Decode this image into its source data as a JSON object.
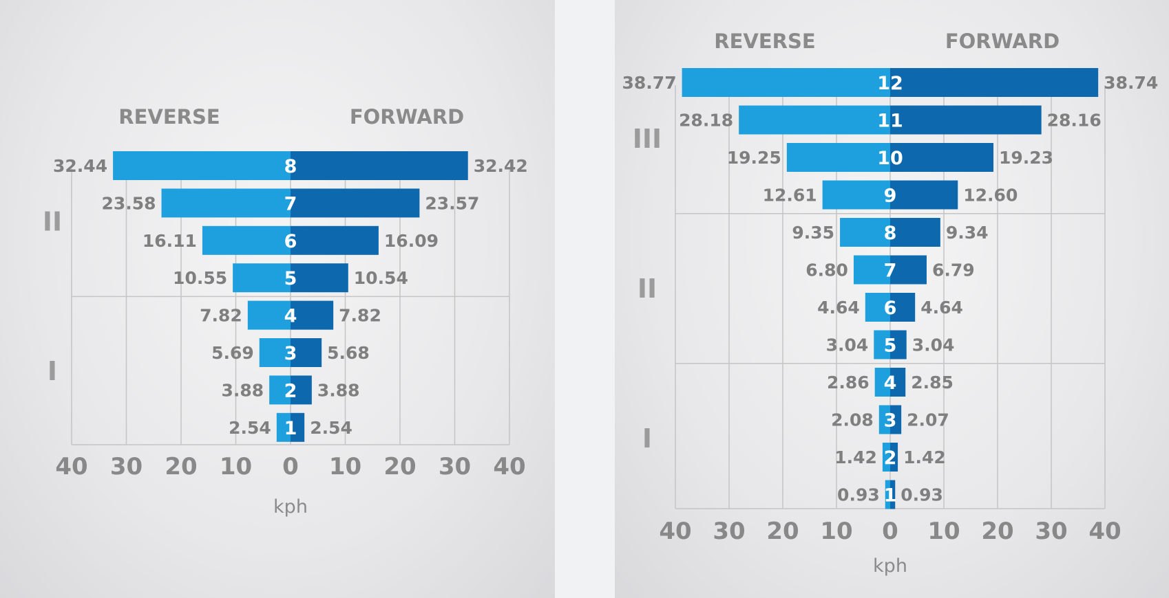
{
  "colors": {
    "reverse_bar": "#1fa0de",
    "forward_bar": "#0d68ae",
    "grid": "#c4c4c4",
    "label_text": "#7f7f7f"
  },
  "chart_data": [
    {
      "type": "bar",
      "orientation": "horizontal",
      "layout": "diverging",
      "title": "",
      "xlabel": "kph",
      "xlim": [
        -40,
        40
      ],
      "x_tick_labels": [
        "40",
        "30",
        "20",
        "10",
        "0",
        "10",
        "20",
        "30",
        "40"
      ],
      "headers": [
        "REVERSE",
        "FORWARD"
      ],
      "categories": [
        "8",
        "7",
        "6",
        "5",
        "4",
        "3",
        "2",
        "1"
      ],
      "ranges": [
        {
          "label": "II",
          "gears": [
            "8",
            "7",
            "6",
            "5"
          ]
        },
        {
          "label": "I",
          "gears": [
            "4",
            "3",
            "2",
            "1"
          ]
        }
      ],
      "series": [
        {
          "name": "REVERSE",
          "values": [
            32.44,
            23.58,
            16.11,
            10.55,
            7.82,
            5.69,
            3.88,
            2.54
          ],
          "labels": [
            "32.44",
            "23.58",
            "16.11",
            "10.55",
            "7.82",
            "5.69",
            "3.88",
            "2.54"
          ]
        },
        {
          "name": "FORWARD",
          "values": [
            32.42,
            23.57,
            16.09,
            10.54,
            7.82,
            5.68,
            3.88,
            2.54
          ],
          "labels": [
            "32.42",
            "23.57",
            "16.09",
            "10.54",
            "7.82",
            "5.68",
            "3.88",
            "2.54"
          ]
        }
      ]
    },
    {
      "type": "bar",
      "orientation": "horizontal",
      "layout": "diverging",
      "title": "",
      "xlabel": "kph",
      "xlim": [
        -40,
        40
      ],
      "x_tick_labels": [
        "40",
        "30",
        "20",
        "10",
        "0",
        "10",
        "20",
        "30",
        "40"
      ],
      "headers": [
        "REVERSE",
        "FORWARD"
      ],
      "categories": [
        "12",
        "11",
        "10",
        "9",
        "8",
        "7",
        "6",
        "5",
        "4",
        "3",
        "2",
        "1"
      ],
      "ranges": [
        {
          "label": "III",
          "gears": [
            "12",
            "11",
            "10",
            "9"
          ]
        },
        {
          "label": "II",
          "gears": [
            "8",
            "7",
            "6",
            "5"
          ]
        },
        {
          "label": "I",
          "gears": [
            "4",
            "3",
            "2",
            "1"
          ]
        }
      ],
      "series": [
        {
          "name": "REVERSE",
          "values": [
            38.77,
            28.18,
            19.25,
            12.61,
            9.35,
            6.8,
            4.64,
            3.04,
            2.86,
            2.08,
            1.42,
            0.93
          ],
          "labels": [
            "38.77",
            "28.18",
            "19.25",
            "12.61",
            "9.35",
            "6.80",
            "4.64",
            "3.04",
            "2.86",
            "2.08",
            "1.42",
            "0.93"
          ]
        },
        {
          "name": "FORWARD",
          "values": [
            38.74,
            28.16,
            19.23,
            12.6,
            9.34,
            6.79,
            4.64,
            3.04,
            2.85,
            2.07,
            1.42,
            0.93
          ],
          "labels": [
            "38.74",
            "28.16",
            "19.23",
            "12.60",
            "9.34",
            "6.79",
            "4.64",
            "3.04",
            "2.85",
            "2.07",
            "1.42",
            "0.93"
          ]
        }
      ]
    }
  ]
}
